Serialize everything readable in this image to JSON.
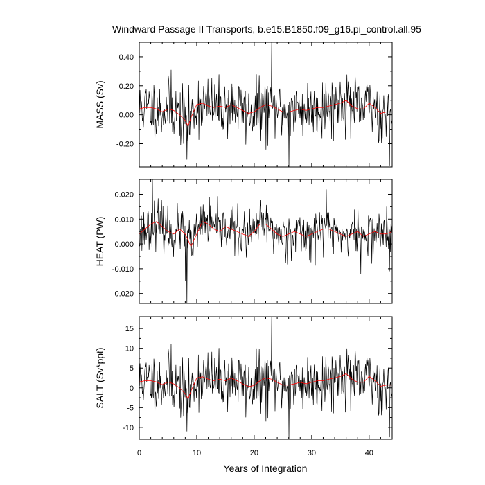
{
  "chart_data": {
    "type": "line",
    "title": "Windward Passage II Transports, b.e15.B1850.f09_g16.pi_control.all.95",
    "xlabel": "Years of Integration",
    "x_range": [
      0,
      44
    ],
    "x_ticks": [
      0,
      10,
      20,
      30,
      40
    ],
    "x_tick_labels": [
      "0",
      "10",
      "20",
      "30",
      "40"
    ],
    "grid": false,
    "series_colors": {
      "raw": "#000000",
      "smoothed": "#ff0000"
    },
    "panels": [
      {
        "ylabel": "MASS (Sv)",
        "ylim": [
          -0.36,
          0.5
        ],
        "y_ticks": [
          -0.2,
          0.0,
          0.2,
          0.4
        ],
        "y_tick_labels": [
          "-0.20",
          "0.00",
          "0.20",
          "0.40"
        ],
        "raw_seed": 11,
        "raw_sd": 0.1,
        "extremes": [
          [
            23.0,
            0.5
          ],
          [
            26.0,
            -0.36
          ],
          [
            43.5,
            -0.35
          ],
          [
            8.3,
            -0.31
          ],
          [
            5.5,
            0.31
          ],
          [
            22.0,
            -0.24
          ]
        ],
        "smoothed": {
          "x": [
            0,
            1,
            2,
            3,
            4,
            5,
            6,
            7,
            8,
            8.5,
            9,
            10,
            11,
            12,
            13,
            14,
            15,
            16,
            17,
            18,
            19,
            20,
            21,
            22,
            23,
            24,
            25,
            26,
            27,
            28,
            29,
            30,
            31,
            32,
            33,
            34,
            35,
            36,
            37,
            38,
            39,
            40,
            41,
            42,
            43,
            44
          ],
          "y": [
            0.04,
            0.05,
            0.05,
            0.04,
            0.02,
            0.04,
            0.03,
            0.0,
            -0.04,
            -0.08,
            -0.02,
            0.07,
            0.08,
            0.06,
            0.05,
            0.06,
            0.05,
            0.07,
            0.05,
            0.03,
            0.01,
            0.02,
            0.05,
            0.07,
            0.06,
            0.04,
            0.02,
            0.02,
            0.03,
            0.04,
            0.03,
            0.04,
            0.05,
            0.05,
            0.06,
            0.07,
            0.08,
            0.1,
            0.06,
            0.04,
            0.04,
            0.08,
            0.05,
            0.01,
            0.02,
            0.02
          ]
        }
      },
      {
        "ylabel": "HEAT (PW)",
        "ylim": [
          -0.024,
          0.026
        ],
        "y_ticks": [
          -0.02,
          -0.01,
          0.0,
          0.01,
          0.02
        ],
        "y_tick_labels": [
          "-0.020",
          "-0.010",
          "0.000",
          "0.010",
          "0.020"
        ],
        "raw_seed": 23,
        "raw_sd": 0.0045,
        "extremes": [
          [
            8.3,
            -0.024
          ],
          [
            2.3,
            0.026
          ],
          [
            32.5,
            0.022
          ],
          [
            8.0,
            -0.015
          ],
          [
            38.5,
            -0.012
          ],
          [
            43.5,
            -0.011
          ]
        ],
        "smoothed": {
          "x": [
            0,
            1,
            2,
            3,
            4,
            5,
            6,
            7,
            8,
            9,
            10,
            11,
            12,
            13,
            14,
            15,
            16,
            17,
            18,
            19,
            20,
            21,
            22,
            23,
            24,
            25,
            26,
            27,
            28,
            29,
            30,
            31,
            32,
            33,
            34,
            35,
            36,
            37,
            38,
            39,
            40,
            41,
            42,
            43,
            44
          ],
          "y": [
            0.004,
            0.006,
            0.008,
            0.009,
            0.007,
            0.005,
            0.004,
            0.006,
            0.004,
            -0.001,
            0.004,
            0.009,
            0.008,
            0.006,
            0.005,
            0.007,
            0.006,
            0.005,
            0.004,
            0.003,
            0.005,
            0.008,
            0.008,
            0.006,
            0.004,
            0.003,
            0.004,
            0.005,
            0.004,
            0.003,
            0.004,
            0.005,
            0.006,
            0.006,
            0.005,
            0.004,
            0.003,
            0.004,
            0.005,
            0.003,
            0.004,
            0.005,
            0.004,
            0.004,
            0.005
          ]
        }
      },
      {
        "ylabel": "SALT (Sv*ppt)",
        "ylim": [
          -13,
          18
        ],
        "y_ticks": [
          -10,
          -5,
          0,
          5,
          10,
          15
        ],
        "y_tick_labels": [
          "-10",
          "-5",
          "0",
          "5",
          "10",
          "15"
        ],
        "raw_seed": 11,
        "raw_sd": 3.6,
        "extremes": [
          [
            23.0,
            18.0
          ],
          [
            26.0,
            -13.0
          ],
          [
            43.5,
            -12.5
          ],
          [
            8.3,
            -11.0
          ],
          [
            5.5,
            11.0
          ],
          [
            22.0,
            -8.5
          ]
        ],
        "smoothed": {
          "x": [
            0,
            1,
            2,
            3,
            4,
            5,
            6,
            7,
            8,
            8.5,
            9,
            10,
            11,
            12,
            13,
            14,
            15,
            16,
            17,
            18,
            19,
            20,
            21,
            22,
            23,
            24,
            25,
            26,
            27,
            28,
            29,
            30,
            31,
            32,
            33,
            34,
            35,
            36,
            37,
            38,
            39,
            40,
            41,
            42,
            43,
            44
          ],
          "y": [
            1.5,
            1.8,
            1.8,
            1.5,
            0.8,
            1.5,
            1.0,
            0.0,
            -1.5,
            -2.8,
            -0.8,
            2.5,
            2.8,
            2.2,
            1.8,
            2.2,
            1.8,
            2.5,
            1.8,
            1.0,
            0.3,
            0.6,
            1.8,
            2.5,
            2.2,
            1.4,
            0.7,
            0.7,
            1.0,
            1.4,
            1.0,
            1.4,
            1.8,
            1.8,
            2.2,
            2.5,
            2.9,
            3.6,
            2.2,
            1.4,
            1.4,
            2.9,
            1.8,
            0.4,
            0.7,
            0.7
          ]
        }
      }
    ]
  }
}
